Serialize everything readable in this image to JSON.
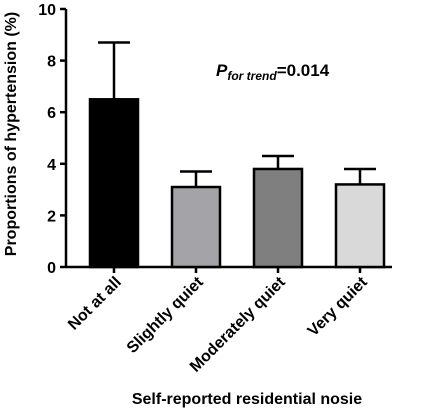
{
  "chart_data": {
    "type": "bar",
    "categories": [
      "Not at all",
      "Slightly quiet",
      "Moderately quiet",
      "Very quiet"
    ],
    "values": [
      6.5,
      3.1,
      3.8,
      3.2
    ],
    "error_upper": [
      8.7,
      3.7,
      4.3,
      3.8
    ],
    "bar_colors": [
      "#000000",
      "#a3a3a8",
      "#7f7f7f",
      "#d9d9d9"
    ],
    "xlabel": "Self-reported residential  nosie",
    "ylabel": "Proportions of hypertension (%)",
    "ylim": [
      0,
      10
    ],
    "yticks": [
      "0",
      "2",
      "4",
      "6",
      "8",
      "10"
    ],
    "annotation": {
      "p": "P",
      "subscript": "for trend",
      "value": "=0.014"
    },
    "grid": false,
    "legend": "none"
  }
}
